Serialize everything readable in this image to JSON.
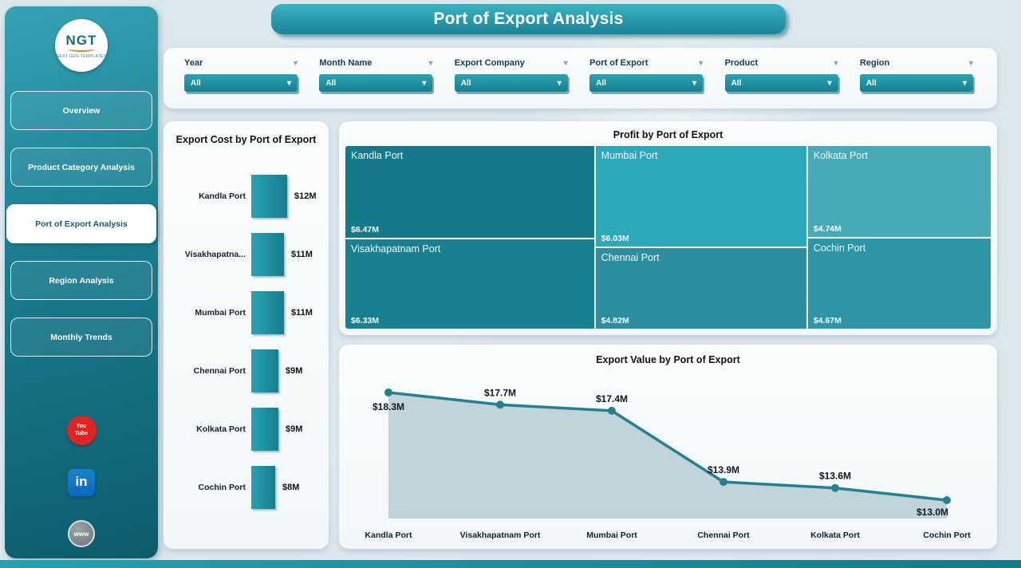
{
  "header": {
    "title": "Port of Export Analysis"
  },
  "sidebar": {
    "logo": {
      "text": "NGT",
      "subtext": "NEXT GEN TEMPLATES"
    },
    "items": [
      {
        "label": "Overview",
        "active": false
      },
      {
        "label": "Product Category Analysis",
        "active": false
      },
      {
        "label": "Port of Export Analysis",
        "active": true
      },
      {
        "label": "Region Analysis",
        "active": false
      },
      {
        "label": "Monthly Trends",
        "active": false
      }
    ],
    "social": [
      {
        "name": "youtube",
        "text": "You Tube"
      },
      {
        "name": "linkedin",
        "text": "in"
      },
      {
        "name": "website",
        "text": "www"
      }
    ]
  },
  "filters": [
    {
      "label": "Year",
      "value": "All"
    },
    {
      "label": "Month Name",
      "value": "All"
    },
    {
      "label": "Export Company",
      "value": "All"
    },
    {
      "label": "Port of Export",
      "value": "All"
    },
    {
      "label": "Product",
      "value": "All"
    },
    {
      "label": "Region",
      "value": "All"
    }
  ],
  "chart_data": [
    {
      "type": "bar",
      "title": "Export Cost by Port of Export",
      "orientation": "horizontal",
      "categories": [
        "Kandla Port",
        "Visakhapatna...",
        "Mumbai Port",
        "Chennai Port",
        "Kolkata Port",
        "Cochin Port"
      ],
      "values": [
        12,
        11,
        11,
        9,
        9,
        8
      ],
      "labels": [
        "$12M",
        "$11M",
        "$11M",
        "$9M",
        "$9M",
        "$8M"
      ],
      "unit": "USD millions"
    },
    {
      "type": "treemap",
      "title": "Profit by Port of Export",
      "items": [
        {
          "name": "Kandla Port",
          "value": 6.47,
          "label": "$6.47M"
        },
        {
          "name": "Visakhapatnam Port",
          "value": 6.33,
          "label": "$6.33M"
        },
        {
          "name": "Mumbai Port",
          "value": 6.03,
          "label": "$6.03M"
        },
        {
          "name": "Chennai Port",
          "value": 4.82,
          "label": "$4.82M"
        },
        {
          "name": "Kolkata Port",
          "value": 4.74,
          "label": "$4.74M"
        },
        {
          "name": "Cochin Port",
          "value": 4.67,
          "label": "$4.67M"
        }
      ],
      "columns": [
        [
          0,
          1
        ],
        [
          2,
          3
        ],
        [
          4,
          5
        ]
      ]
    },
    {
      "type": "area",
      "title": "Export Value by Port of Export",
      "categories": [
        "Kandla Port",
        "Visakhapatnam Port",
        "Mumbai Port",
        "Chennai Port",
        "Kolkata Port",
        "Cochin Port"
      ],
      "values": [
        18.3,
        17.7,
        17.4,
        13.9,
        13.6,
        13.0
      ],
      "labels": [
        "$18.3M",
        "$17.7M",
        "$17.4M",
        "$13.9M",
        "$13.6M",
        "$13.0M"
      ],
      "legend": "off",
      "grid": "off"
    }
  ],
  "colors": {
    "accent": "#1e8a9b",
    "sidebar_top": "#35a3b4",
    "sidebar_bottom": "#0d5c6d",
    "bar": "#1f8fa0",
    "treemap": [
      "#147a8a",
      "#17818f",
      "#2ba8ba",
      "#2a8fa0",
      "#46aab8",
      "#2d96a6"
    ],
    "line": "#25808f",
    "area_fill": "#b7cdd5"
  }
}
